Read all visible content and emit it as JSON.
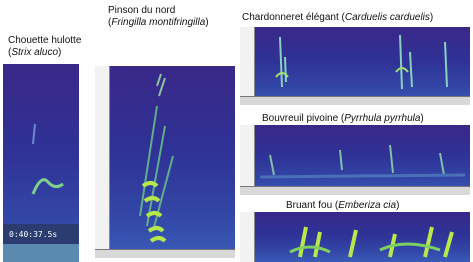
{
  "panels": [
    {
      "label": [
        [
          {
            "text": "Chouette hulotte"
          }
        ],
        [
          {
            "text": "("
          },
          {
            "text": "Strix aluco",
            "italic": true
          },
          {
            "text": ")"
          }
        ]
      ],
      "timestamp": "0:40:37.5s"
    },
    {
      "label": [
        [
          {
            "text": "Pinson du nord"
          }
        ],
        [
          {
            "text": "("
          },
          {
            "text": "Fringilla montifringilla",
            "italic": true
          },
          {
            "text": ")"
          }
        ]
      ]
    },
    {
      "label": [
        [
          {
            "text": "Chardonneret élégant ("
          },
          {
            "text": "Carduelis carduelis",
            "italic": true
          },
          {
            "text": ")"
          }
        ]
      ]
    },
    {
      "label": [
        [
          {
            "text": "Bouvreuil pivoine ("
          },
          {
            "text": "Pyrrhula pyrrhula",
            "italic": true
          },
          {
            "text": ")"
          }
        ]
      ]
    },
    {
      "label": [
        [
          {
            "text": "Bruant fou ("
          },
          {
            "text": "Emberiza cia",
            "italic": true
          },
          {
            "text": ")"
          }
        ]
      ]
    }
  ]
}
